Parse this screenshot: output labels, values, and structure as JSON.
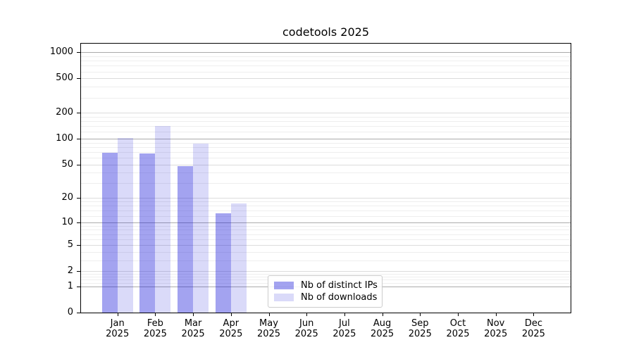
{
  "chart_data": {
    "type": "bar",
    "title": "codetools 2025",
    "categories": [
      {
        "month": "Jan",
        "year": "2025"
      },
      {
        "month": "Feb",
        "year": "2025"
      },
      {
        "month": "Mar",
        "year": "2025"
      },
      {
        "month": "Apr",
        "year": "2025"
      },
      {
        "month": "May",
        "year": "2025"
      },
      {
        "month": "Jun",
        "year": "2025"
      },
      {
        "month": "Jul",
        "year": "2025"
      },
      {
        "month": "Aug",
        "year": "2025"
      },
      {
        "month": "Sep",
        "year": "2025"
      },
      {
        "month": "Oct",
        "year": "2025"
      },
      {
        "month": "Nov",
        "year": "2025"
      },
      {
        "month": "Dec",
        "year": "2025"
      }
    ],
    "series": [
      {
        "name": "Nb of distinct IPs",
        "color": "#1a1ada",
        "opacity": 0.4,
        "values": [
          68,
          67,
          48,
          13,
          0,
          0,
          0,
          0,
          0,
          0,
          0,
          0
        ]
      },
      {
        "name": "Nb of downloads",
        "color": "#1a1ada",
        "opacity": 0.16,
        "values": [
          102,
          140,
          88,
          17,
          0,
          0,
          0,
          0,
          0,
          0,
          0,
          0
        ]
      }
    ],
    "xlabel": "",
    "ylabel": "",
    "yscale": "log1p",
    "ylim": [
      0,
      1258
    ],
    "yticks": [
      0,
      1,
      2,
      5,
      10,
      20,
      50,
      100,
      200,
      500,
      1000
    ],
    "grid": true,
    "grid_major_lines": [
      1,
      10,
      100,
      1000
    ],
    "grid_decades": [
      1,
      10,
      100
    ],
    "grid_minor_subs": [
      1.2,
      1.4,
      1.6,
      1.8,
      3,
      4,
      6,
      7,
      8,
      9
    ],
    "legend_position": "lower center"
  }
}
